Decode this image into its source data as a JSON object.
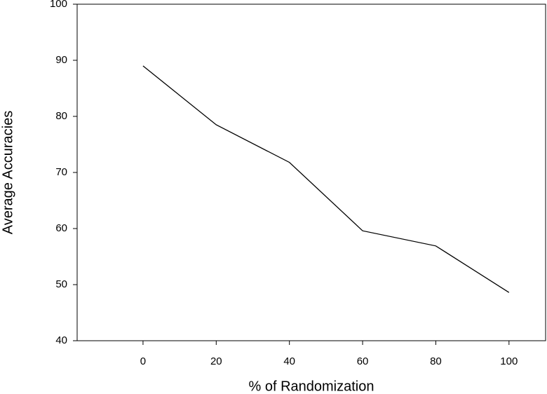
{
  "chart_data": {
    "type": "line",
    "x_label": "% of Randomization",
    "y_label": "Average Accuracies",
    "x": [
      0,
      20,
      40,
      60,
      80,
      100
    ],
    "series": [
      {
        "color": "#000000",
        "values": [
          89,
          78.5,
          71.8,
          59.6,
          56.9,
          48.6
        ]
      }
    ],
    "xlim": [
      -18,
      110
    ],
    "xticks": [
      0,
      20,
      40,
      60,
      80,
      100
    ],
    "ylim": [
      40,
      100
    ],
    "yticks": [
      40,
      50,
      60,
      70,
      80,
      90,
      100
    ],
    "grid": false
  }
}
